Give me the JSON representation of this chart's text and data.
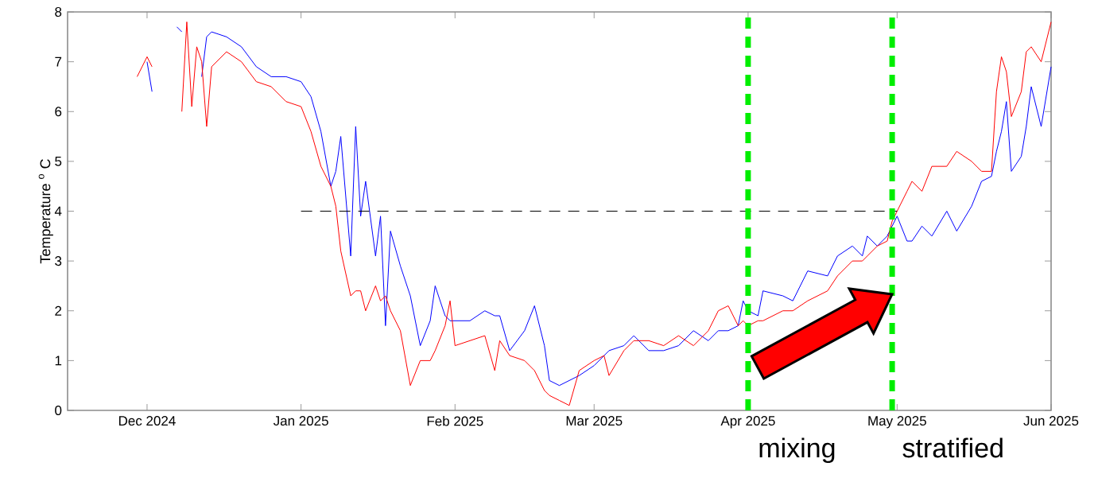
{
  "chart_data": {
    "type": "line",
    "ylabel": "Temperature $^{o}$ C",
    "x": [
      "2024-11-29",
      "2024-11-30",
      "2024-12-01",
      "2024-12-02",
      "2024-12-03",
      "2024-12-07",
      "2024-12-08",
      "2024-12-09",
      "2024-12-10",
      "2024-12-11",
      "2024-12-12",
      "2024-12-13",
      "2024-12-14",
      "2024-12-17",
      "2024-12-20",
      "2024-12-23",
      "2024-12-26",
      "2024-12-29",
      "2025-01-01",
      "2025-01-03",
      "2025-01-05",
      "2025-01-07",
      "2025-01-08",
      "2025-01-09",
      "2025-01-11",
      "2025-01-12",
      "2025-01-13",
      "2025-01-14",
      "2025-01-16",
      "2025-01-17",
      "2025-01-18",
      "2025-01-19",
      "2025-01-21",
      "2025-01-23",
      "2025-01-25",
      "2025-01-27",
      "2025-01-28",
      "2025-01-30",
      "2025-01-31",
      "2025-02-01",
      "2025-02-04",
      "2025-02-07",
      "2025-02-09",
      "2025-02-10",
      "2025-02-12",
      "2025-02-15",
      "2025-02-17",
      "2025-02-19",
      "2025-02-20",
      "2025-02-22",
      "2025-02-24",
      "2025-02-26",
      "2025-03-01",
      "2025-03-03",
      "2025-03-04",
      "2025-03-07",
      "2025-03-09",
      "2025-03-12",
      "2025-03-15",
      "2025-03-18",
      "2025-03-21",
      "2025-03-24",
      "2025-03-26",
      "2025-03-28",
      "2025-03-30",
      "2025-03-31",
      "2025-04-01",
      "2025-04-03",
      "2025-04-04",
      "2025-04-08",
      "2025-04-10",
      "2025-04-13",
      "2025-04-17",
      "2025-04-19",
      "2025-04-22",
      "2025-04-24",
      "2025-04-25",
      "2025-04-27",
      "2025-04-29",
      "2025-04-30",
      "2025-05-01",
      "2025-05-03",
      "2025-05-04",
      "2025-05-06",
      "2025-05-08",
      "2025-05-11",
      "2025-05-13",
      "2025-05-16",
      "2025-05-18",
      "2025-05-20",
      "2025-05-21",
      "2025-05-22",
      "2025-05-23",
      "2025-05-24",
      "2025-05-26",
      "2025-05-27",
      "2025-05-28",
      "2025-05-30",
      "2025-06-01"
    ],
    "series": [
      {
        "color": "#0000ff",
        "values": [
          null,
          null,
          7.0,
          6.4,
          null,
          7.7,
          7.6,
          null,
          null,
          null,
          6.7,
          7.5,
          7.6,
          7.5,
          7.3,
          6.9,
          6.7,
          6.7,
          6.6,
          6.3,
          5.6,
          4.5,
          4.8,
          5.5,
          3.1,
          5.7,
          3.9,
          4.6,
          3.1,
          3.9,
          1.7,
          3.6,
          2.9,
          2.3,
          1.3,
          1.8,
          2.5,
          1.9,
          1.8,
          1.8,
          1.8,
          2.0,
          1.9,
          1.9,
          1.2,
          1.6,
          2.1,
          1.3,
          0.6,
          0.5,
          0.6,
          0.7,
          0.9,
          1.1,
          1.2,
          1.3,
          1.5,
          1.2,
          1.2,
          1.3,
          1.6,
          1.4,
          1.6,
          1.6,
          1.7,
          2.2,
          2.0,
          1.9,
          2.4,
          2.3,
          2.2,
          2.8,
          2.7,
          3.1,
          3.3,
          3.1,
          3.5,
          3.3,
          3.5,
          3.7,
          3.9,
          3.4,
          3.4,
          3.7,
          3.5,
          4.0,
          3.6,
          4.1,
          4.6,
          4.7,
          5.2,
          5.6,
          6.2,
          4.8,
          5.1,
          5.7,
          6.5,
          5.7,
          6.9
        ]
      },
      {
        "color": "#ff0000",
        "values": [
          6.7,
          6.9,
          7.1,
          6.9,
          null,
          null,
          6.0,
          7.8,
          6.1,
          7.3,
          7.0,
          5.7,
          6.9,
          7.2,
          7.0,
          6.6,
          6.5,
          6.2,
          6.1,
          5.6,
          4.9,
          4.5,
          4.1,
          3.2,
          2.3,
          2.4,
          2.4,
          2.0,
          2.5,
          2.2,
          2.3,
          2.0,
          1.6,
          0.5,
          1.0,
          1.0,
          1.2,
          1.7,
          2.2,
          1.3,
          1.4,
          1.5,
          0.8,
          1.4,
          1.1,
          1.0,
          0.8,
          0.4,
          0.3,
          0.2,
          0.1,
          0.8,
          1.0,
          1.1,
          0.7,
          1.2,
          1.4,
          1.4,
          1.3,
          1.5,
          1.3,
          1.6,
          2.0,
          2.1,
          1.7,
          1.8,
          1.7,
          1.8,
          1.8,
          2.0,
          2.0,
          2.2,
          2.4,
          2.7,
          3.0,
          3.0,
          3.1,
          3.3,
          3.4,
          3.8,
          4.0,
          4.4,
          4.6,
          4.4,
          4.9,
          4.9,
          5.2,
          5.0,
          4.8,
          4.8,
          6.4,
          7.1,
          6.8,
          5.9,
          6.4,
          7.2,
          7.3,
          7.0,
          7.8
        ]
      },
      {
        "type": "line",
        "color": "#000000",
        "line_style": "dashed",
        "x": [
          "2025-01-01",
          "2025-05-01"
        ],
        "values": [
          4,
          4
        ]
      }
    ],
    "xlim": [
      "2024-11-15",
      "2025-06-01"
    ],
    "xticks": [
      {
        "value": "2024-12-01",
        "label": "Dec 2024"
      },
      {
        "value": "2025-01-01",
        "label": "Jan 2025"
      },
      {
        "value": "2025-02-01",
        "label": "Feb 2025"
      },
      {
        "value": "2025-03-01",
        "label": "Mar 2025"
      },
      {
        "value": "2025-04-01",
        "label": "Apr 2025"
      },
      {
        "value": "2025-05-01",
        "label": "May 2025"
      },
      {
        "value": "2025-06-01",
        "label": "Jun 2025"
      }
    ],
    "ylim": [
      0,
      8
    ],
    "yticks": [
      0,
      1,
      2,
      3,
      4,
      5,
      6,
      7,
      8
    ],
    "ref_lines": [
      {
        "axis": "x",
        "value": "2025-04-01",
        "label": "mixing",
        "color": "#00ee00",
        "line_style": "dashed"
      },
      {
        "axis": "x",
        "value": "2025-04-30",
        "label": "stratified",
        "color": "#00ee00",
        "line_style": "dashed"
      }
    ]
  }
}
